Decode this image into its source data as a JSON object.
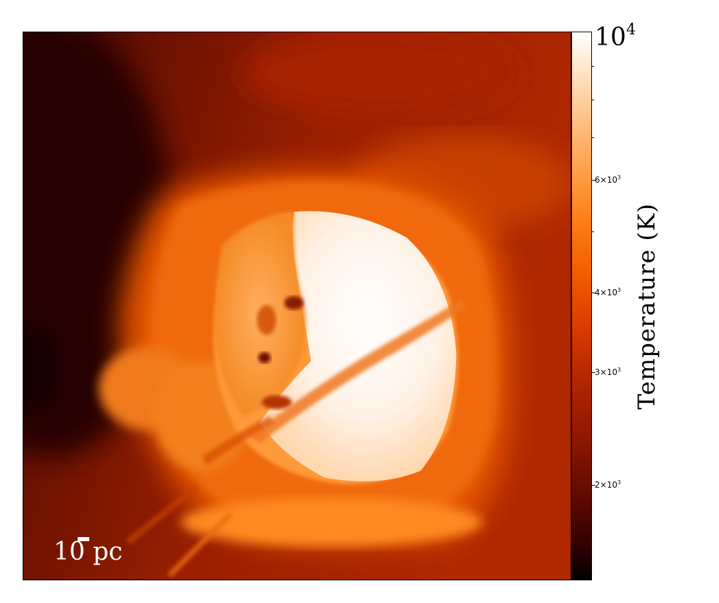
{
  "image": {
    "description_of_content": "",
    "scale_bar": {
      "number": "10",
      "unit": "pc"
    }
  },
  "colorbar": {
    "title": "Temperature  (K)",
    "top_label_base": "10",
    "top_label_exponent": "4",
    "ticks": [
      {
        "mantissa": "6",
        "exponent": "3"
      },
      {
        "mantissa": "4",
        "exponent": "3"
      },
      {
        "mantissa": "3",
        "exponent": "3"
      },
      {
        "mantissa": "2",
        "exponent": "3"
      }
    ],
    "times_symbol": "×",
    "colormap": "gist_heat",
    "scale": "log"
  }
}
